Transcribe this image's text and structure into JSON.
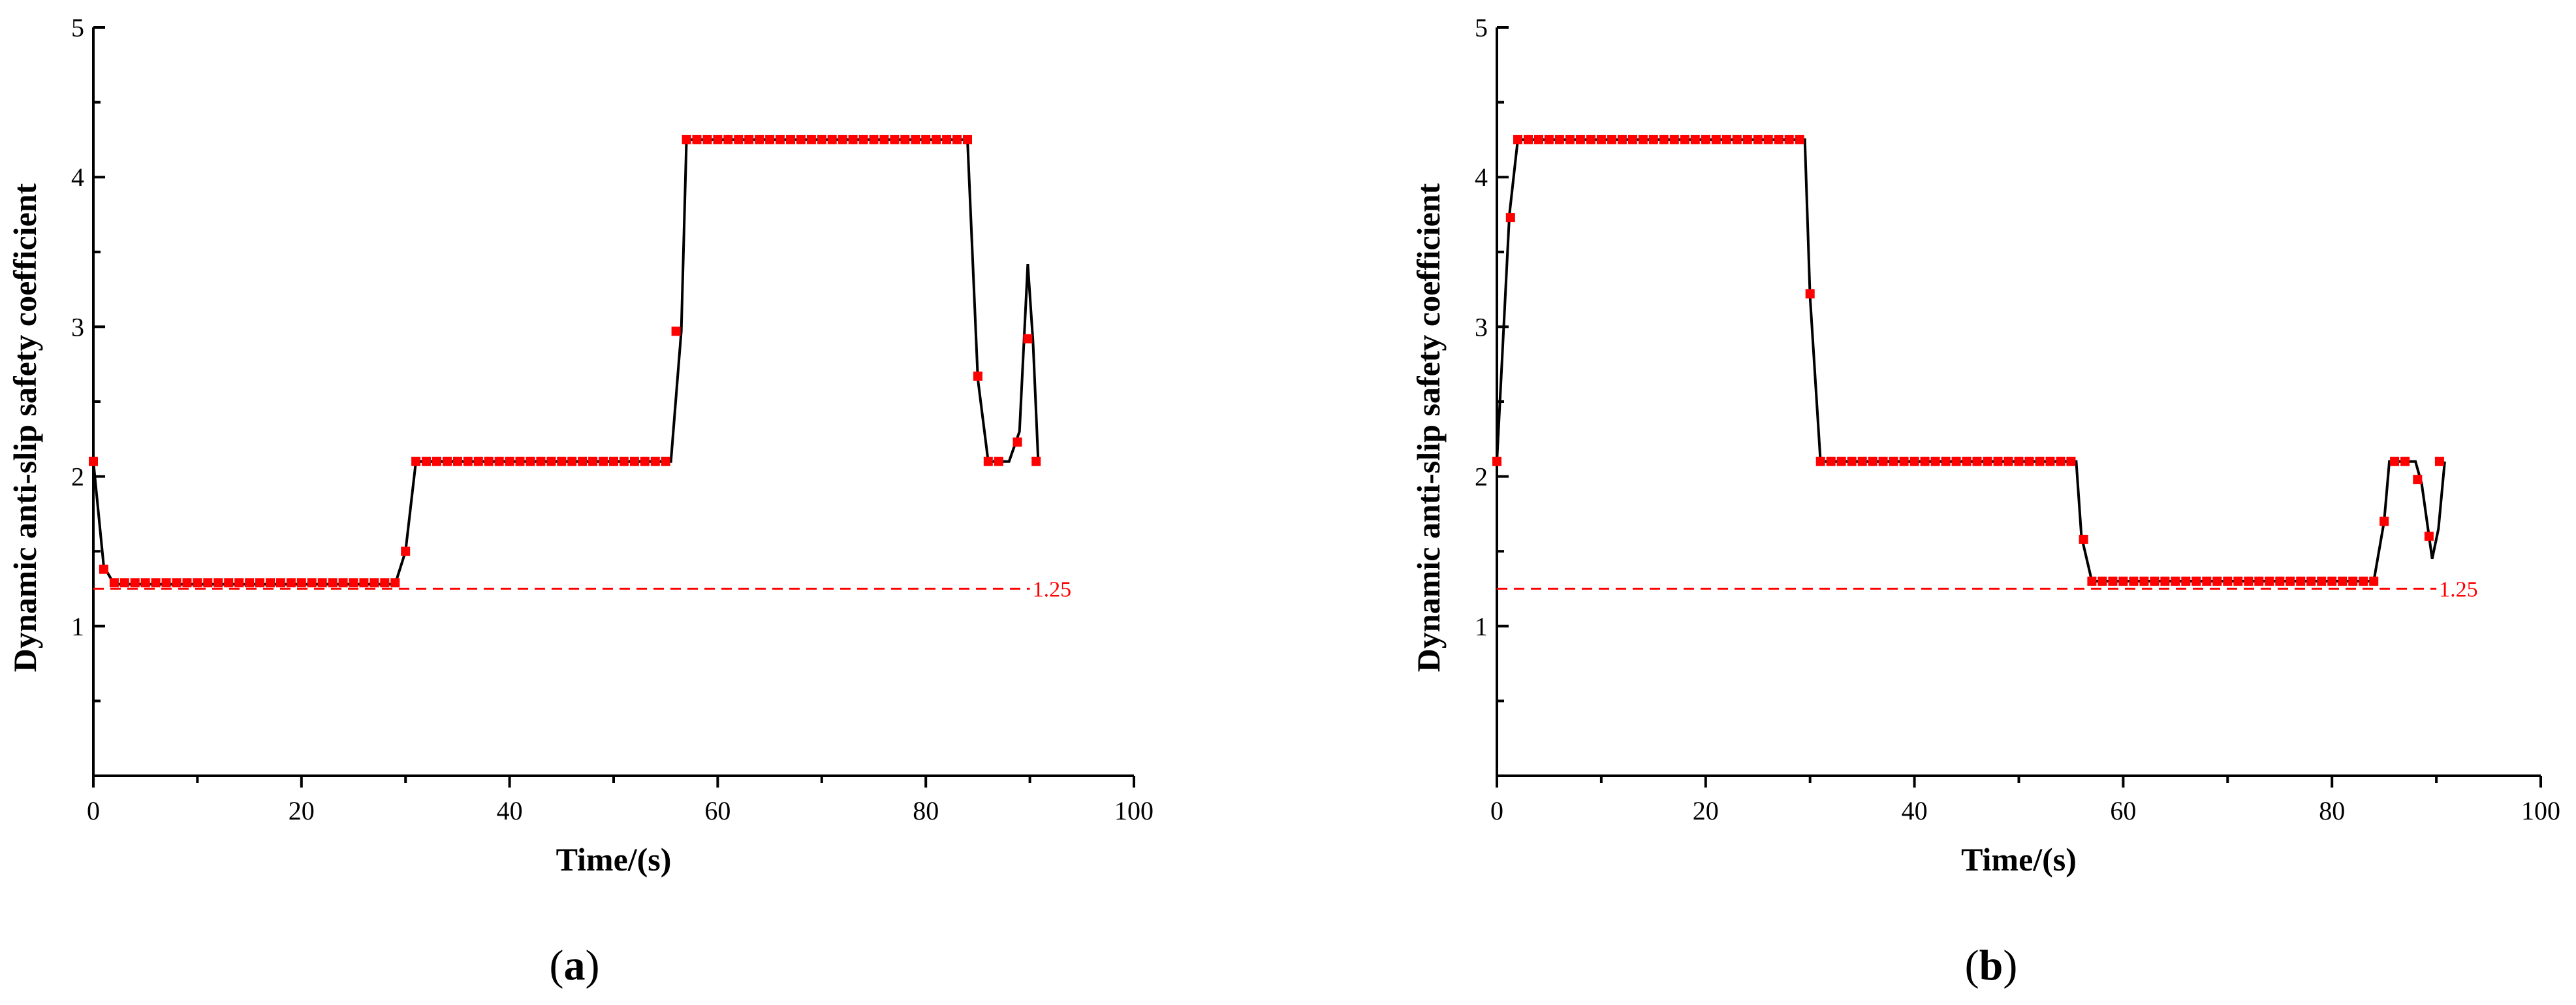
{
  "chart_data": [
    {
      "type": "line",
      "panel_label": "a",
      "xlabel": "Time/(s)",
      "ylabel": "Dynamic anti-slip safety coefficient",
      "xlim": [
        0,
        100
      ],
      "ylim": [
        0,
        5
      ],
      "x_ticks": [
        0,
        20,
        40,
        60,
        80,
        100
      ],
      "y_ticks": [
        1,
        2,
        3,
        4,
        5
      ],
      "threshold": {
        "value": 1.25,
        "label": "1.25",
        "x_end": 90,
        "color": "#ff0000"
      },
      "series": [
        {
          "line_color": "#000000",
          "marker_color": "#ff0000",
          "line": [
            [
              0,
              2.1
            ],
            [
              1,
              1.4
            ],
            [
              2,
              1.28
            ],
            [
              29,
              1.28
            ],
            [
              30,
              1.5
            ],
            [
              31,
              2.1
            ],
            [
              55.5,
              2.1
            ],
            [
              56.5,
              2.97
            ],
            [
              57,
              4.25
            ],
            [
              84,
              4.25
            ],
            [
              85,
              2.65
            ],
            [
              86,
              2.1
            ],
            [
              88,
              2.1
            ],
            [
              89,
              2.3
            ],
            [
              89.8,
              3.42
            ],
            [
              90.3,
              2.9
            ],
            [
              90.8,
              2.1
            ]
          ],
          "points": [
            [
              0,
              2.1
            ],
            [
              1,
              1.38
            ],
            [
              2,
              1.29
            ],
            [
              3,
              1.29
            ],
            [
              4,
              1.29
            ],
            [
              5,
              1.29
            ],
            [
              6,
              1.29
            ],
            [
              7,
              1.29
            ],
            [
              8,
              1.29
            ],
            [
              9,
              1.29
            ],
            [
              10,
              1.29
            ],
            [
              11,
              1.29
            ],
            [
              12,
              1.29
            ],
            [
              13,
              1.29
            ],
            [
              14,
              1.29
            ],
            [
              15,
              1.29
            ],
            [
              16,
              1.29
            ],
            [
              17,
              1.29
            ],
            [
              18,
              1.29
            ],
            [
              19,
              1.29
            ],
            [
              20,
              1.29
            ],
            [
              21,
              1.29
            ],
            [
              22,
              1.29
            ],
            [
              23,
              1.29
            ],
            [
              24,
              1.29
            ],
            [
              25,
              1.29
            ],
            [
              26,
              1.29
            ],
            [
              27,
              1.29
            ],
            [
              28,
              1.29
            ],
            [
              29,
              1.29
            ],
            [
              30,
              1.5
            ],
            [
              31,
              2.1
            ],
            [
              32,
              2.1
            ],
            [
              33,
              2.1
            ],
            [
              34,
              2.1
            ],
            [
              35,
              2.1
            ],
            [
              36,
              2.1
            ],
            [
              37,
              2.1
            ],
            [
              38,
              2.1
            ],
            [
              39,
              2.1
            ],
            [
              40,
              2.1
            ],
            [
              41,
              2.1
            ],
            [
              42,
              2.1
            ],
            [
              43,
              2.1
            ],
            [
              44,
              2.1
            ],
            [
              45,
              2.1
            ],
            [
              46,
              2.1
            ],
            [
              47,
              2.1
            ],
            [
              48,
              2.1
            ],
            [
              49,
              2.1
            ],
            [
              50,
              2.1
            ],
            [
              51,
              2.1
            ],
            [
              52,
              2.1
            ],
            [
              53,
              2.1
            ],
            [
              54,
              2.1
            ],
            [
              55,
              2.1
            ],
            [
              56,
              2.97
            ],
            [
              57,
              4.25
            ],
            [
              58,
              4.25
            ],
            [
              59,
              4.25
            ],
            [
              60,
              4.25
            ],
            [
              61,
              4.25
            ],
            [
              62,
              4.25
            ],
            [
              63,
              4.25
            ],
            [
              64,
              4.25
            ],
            [
              65,
              4.25
            ],
            [
              66,
              4.25
            ],
            [
              67,
              4.25
            ],
            [
              68,
              4.25
            ],
            [
              69,
              4.25
            ],
            [
              70,
              4.25
            ],
            [
              71,
              4.25
            ],
            [
              72,
              4.25
            ],
            [
              73,
              4.25
            ],
            [
              74,
              4.25
            ],
            [
              75,
              4.25
            ],
            [
              76,
              4.25
            ],
            [
              77,
              4.25
            ],
            [
              78,
              4.25
            ],
            [
              79,
              4.25
            ],
            [
              80,
              4.25
            ],
            [
              81,
              4.25
            ],
            [
              82,
              4.25
            ],
            [
              83,
              4.25
            ],
            [
              84,
              4.25
            ],
            [
              85,
              2.67
            ],
            [
              86,
              2.1
            ],
            [
              87,
              2.1
            ],
            [
              88.8,
              2.23
            ],
            [
              89.8,
              2.92
            ],
            [
              90.6,
              2.1
            ]
          ]
        }
      ]
    },
    {
      "type": "line",
      "panel_label": "b",
      "xlabel": "Time/(s)",
      "ylabel": "Dynamic anti-slip safety coefficient",
      "xlim": [
        0,
        100
      ],
      "ylim": [
        0,
        5
      ],
      "x_ticks": [
        0,
        20,
        40,
        60,
        80,
        100
      ],
      "y_ticks": [
        1,
        2,
        3,
        4,
        5
      ],
      "threshold": {
        "value": 1.25,
        "label": "1.25",
        "x_end": 90,
        "color": "#ff0000"
      },
      "series": [
        {
          "line_color": "#000000",
          "marker_color": "#ff0000",
          "line": [
            [
              0,
              2.1
            ],
            [
              1.2,
              3.75
            ],
            [
              2,
              4.25
            ],
            [
              29.5,
              4.25
            ],
            [
              30,
              3.2
            ],
            [
              31,
              2.1
            ],
            [
              55.5,
              2.1
            ],
            [
              56,
              1.6
            ],
            [
              57,
              1.3
            ],
            [
              84,
              1.3
            ],
            [
              85,
              1.7
            ],
            [
              85.5,
              2.1
            ],
            [
              88,
              2.1
            ],
            [
              88.6,
              1.95
            ],
            [
              89.6,
              1.45
            ],
            [
              90.2,
              1.65
            ],
            [
              90.8,
              2.1
            ]
          ],
          "points": [
            [
              0,
              2.1
            ],
            [
              1.3,
              3.73
            ],
            [
              2,
              4.25
            ],
            [
              3,
              4.25
            ],
            [
              4,
              4.25
            ],
            [
              5,
              4.25
            ],
            [
              6,
              4.25
            ],
            [
              7,
              4.25
            ],
            [
              8,
              4.25
            ],
            [
              9,
              4.25
            ],
            [
              10,
              4.25
            ],
            [
              11,
              4.25
            ],
            [
              12,
              4.25
            ],
            [
              13,
              4.25
            ],
            [
              14,
              4.25
            ],
            [
              15,
              4.25
            ],
            [
              16,
              4.25
            ],
            [
              17,
              4.25
            ],
            [
              18,
              4.25
            ],
            [
              19,
              4.25
            ],
            [
              20,
              4.25
            ],
            [
              21,
              4.25
            ],
            [
              22,
              4.25
            ],
            [
              23,
              4.25
            ],
            [
              24,
              4.25
            ],
            [
              25,
              4.25
            ],
            [
              26,
              4.25
            ],
            [
              27,
              4.25
            ],
            [
              28,
              4.25
            ],
            [
              29,
              4.25
            ],
            [
              30,
              3.22
            ],
            [
              31,
              2.1
            ],
            [
              32,
              2.1
            ],
            [
              33,
              2.1
            ],
            [
              34,
              2.1
            ],
            [
              35,
              2.1
            ],
            [
              36,
              2.1
            ],
            [
              37,
              2.1
            ],
            [
              38,
              2.1
            ],
            [
              39,
              2.1
            ],
            [
              40,
              2.1
            ],
            [
              41,
              2.1
            ],
            [
              42,
              2.1
            ],
            [
              43,
              2.1
            ],
            [
              44,
              2.1
            ],
            [
              45,
              2.1
            ],
            [
              46,
              2.1
            ],
            [
              47,
              2.1
            ],
            [
              48,
              2.1
            ],
            [
              49,
              2.1
            ],
            [
              50,
              2.1
            ],
            [
              51,
              2.1
            ],
            [
              52,
              2.1
            ],
            [
              53,
              2.1
            ],
            [
              54,
              2.1
            ],
            [
              55,
              2.1
            ],
            [
              56.2,
              1.58
            ],
            [
              57,
              1.3
            ],
            [
              58,
              1.3
            ],
            [
              59,
              1.3
            ],
            [
              60,
              1.3
            ],
            [
              61,
              1.3
            ],
            [
              62,
              1.3
            ],
            [
              63,
              1.3
            ],
            [
              64,
              1.3
            ],
            [
              65,
              1.3
            ],
            [
              66,
              1.3
            ],
            [
              67,
              1.3
            ],
            [
              68,
              1.3
            ],
            [
              69,
              1.3
            ],
            [
              70,
              1.3
            ],
            [
              71,
              1.3
            ],
            [
              72,
              1.3
            ],
            [
              73,
              1.3
            ],
            [
              74,
              1.3
            ],
            [
              75,
              1.3
            ],
            [
              76,
              1.3
            ],
            [
              77,
              1.3
            ],
            [
              78,
              1.3
            ],
            [
              79,
              1.3
            ],
            [
              80,
              1.3
            ],
            [
              81,
              1.3
            ],
            [
              82,
              1.3
            ],
            [
              83,
              1.3
            ],
            [
              84,
              1.3
            ],
            [
              85,
              1.7
            ],
            [
              86,
              2.1
            ],
            [
              87,
              2.1
            ],
            [
              88.2,
              1.98
            ],
            [
              89.3,
              1.6
            ],
            [
              90.3,
              2.1
            ]
          ]
        }
      ]
    }
  ]
}
